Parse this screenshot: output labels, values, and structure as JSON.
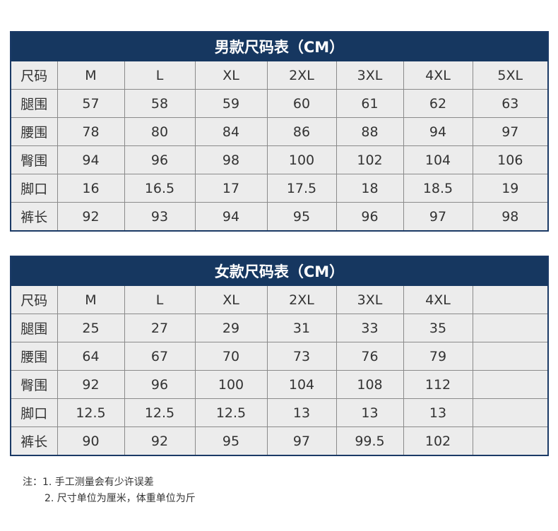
{
  "men": {
    "title": "男款尺码表（CM）",
    "rows": [
      [
        "尺码",
        "M",
        "L",
        "XL",
        "2XL",
        "3XL",
        "4XL",
        "5XL"
      ],
      [
        "腿围",
        "57",
        "58",
        "59",
        "60",
        "61",
        "62",
        "63"
      ],
      [
        "腰围",
        "78",
        "80",
        "84",
        "86",
        "88",
        "94",
        "97"
      ],
      [
        "臀围",
        "94",
        "96",
        "98",
        "100",
        "102",
        "104",
        "106"
      ],
      [
        "脚口",
        "16",
        "16.5",
        "17",
        "17.5",
        "18",
        "18.5",
        "19"
      ],
      [
        "裤长",
        "92",
        "93",
        "94",
        "95",
        "96",
        "97",
        "98"
      ]
    ]
  },
  "women": {
    "title": "女款尺码表（CM）",
    "rows": [
      [
        "尺码",
        "M",
        "L",
        "XL",
        "2XL",
        "3XL",
        "4XL",
        ""
      ],
      [
        "腿围",
        "25",
        "27",
        "29",
        "31",
        "33",
        "35",
        ""
      ],
      [
        "腰围",
        "64",
        "67",
        "70",
        "73",
        "76",
        "79",
        ""
      ],
      [
        "臀围",
        "92",
        "96",
        "100",
        "104",
        "108",
        "112",
        ""
      ],
      [
        "脚口",
        "12.5",
        "12.5",
        "12.5",
        "13",
        "13",
        "13",
        ""
      ],
      [
        "裤长",
        "90",
        "92",
        "95",
        "97",
        "99.5",
        "102",
        ""
      ]
    ]
  },
  "notes": {
    "line1": "注：1. 手工测量会有少许误差",
    "line2": "2. 尺寸单位为厘米，体重单位为斤"
  },
  "colors": {
    "header": "#163760",
    "cell": "#ececec"
  }
}
